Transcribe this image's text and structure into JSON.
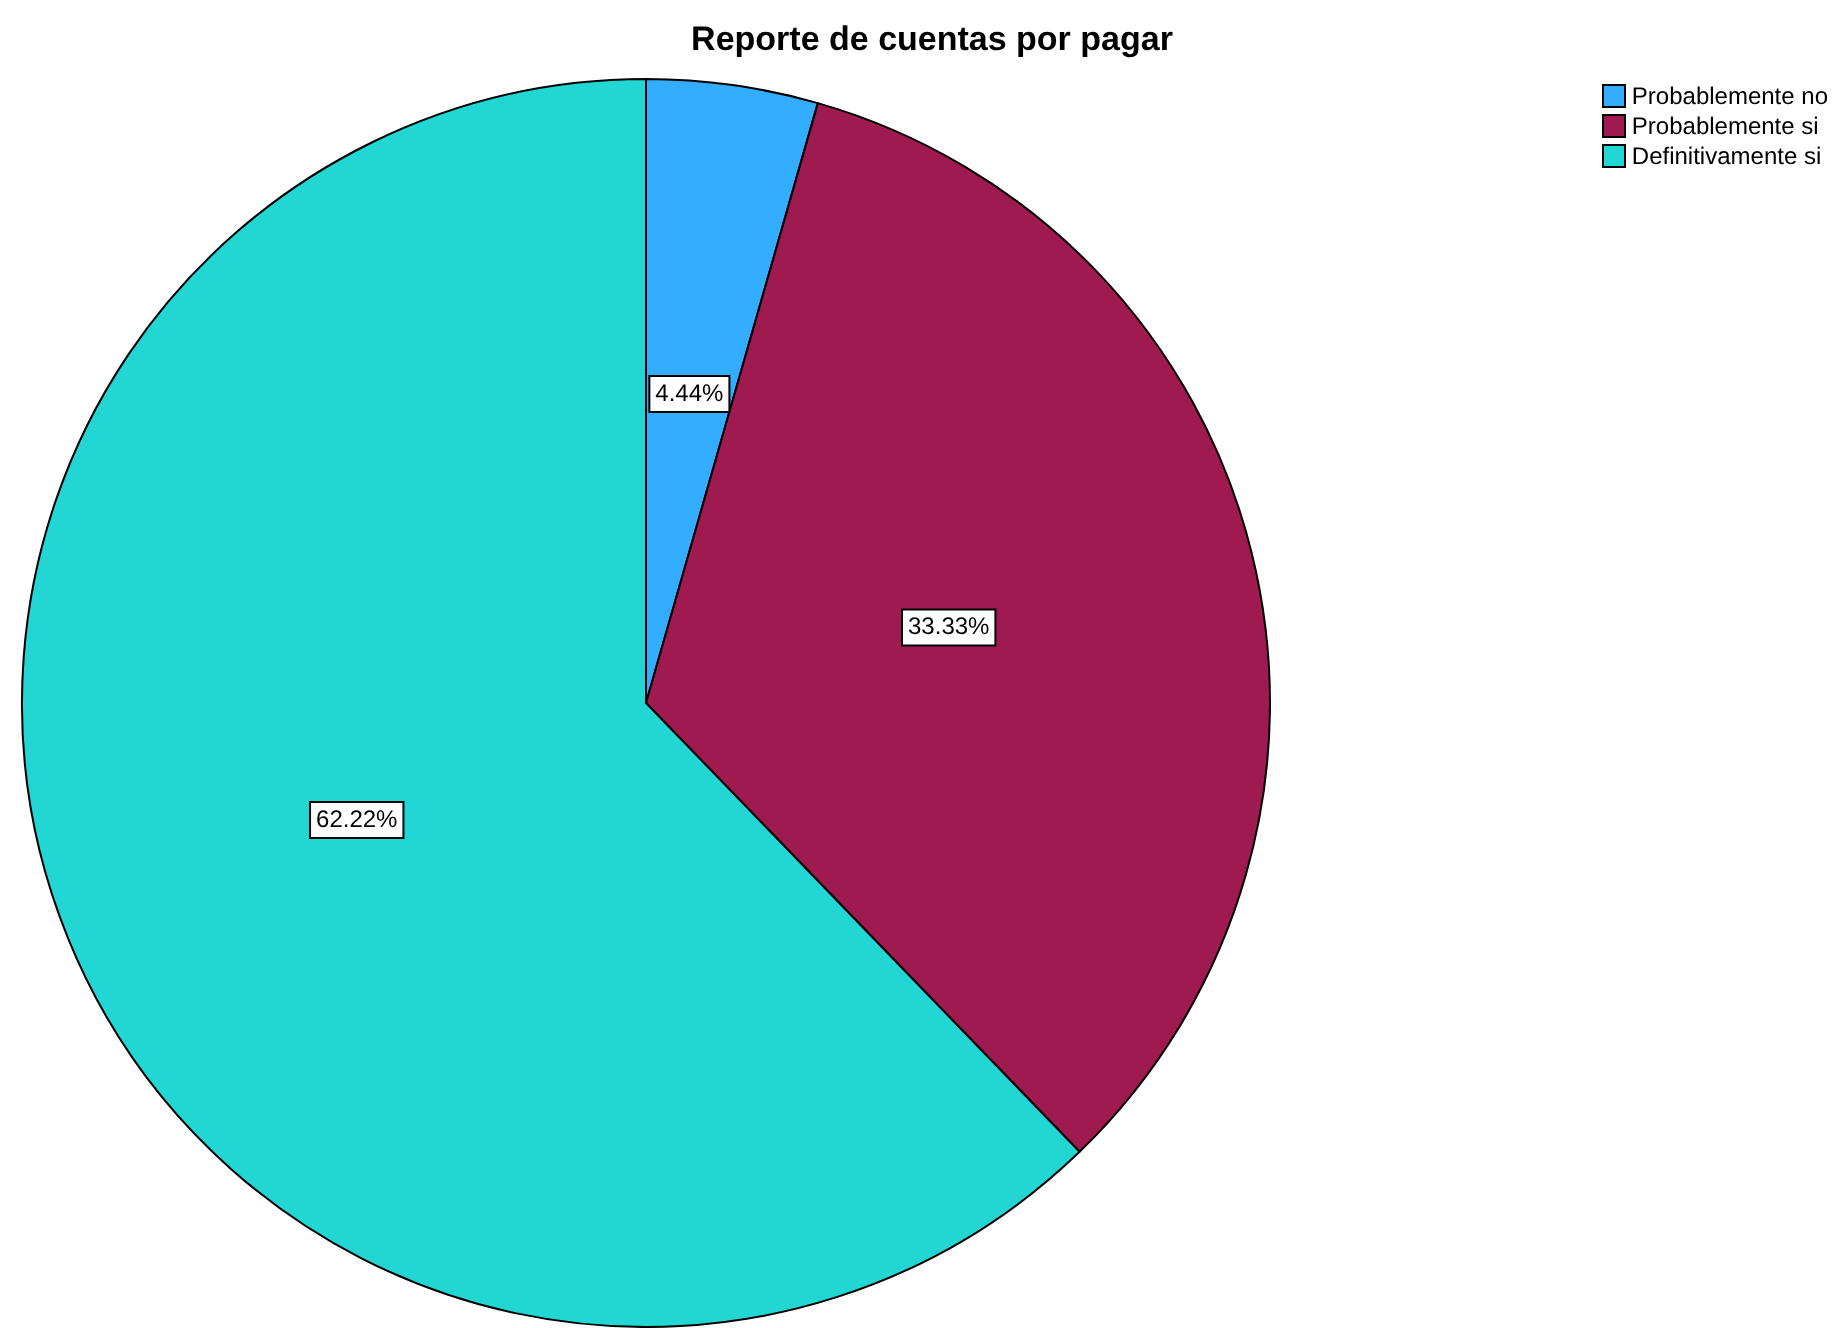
{
  "chart_data": {
    "type": "pie",
    "title": "Reporte de cuentas por pagar",
    "categories": [
      "Probablemente no",
      "Probablemente si",
      "Definitivamente si"
    ],
    "values": [
      4.44,
      33.33,
      62.22
    ],
    "colors": [
      "#33adff",
      "#9e1a4f",
      "#21d6d3"
    ],
    "value_labels": [
      "4.44%",
      "33.33%",
      "62.22%"
    ],
    "legend": "top right"
  }
}
